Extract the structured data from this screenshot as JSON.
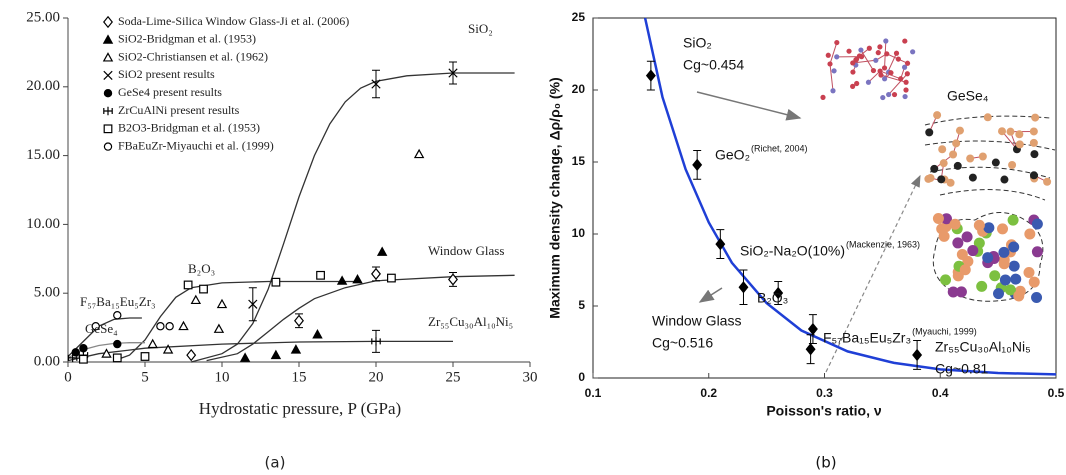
{
  "chart_data": [
    {
      "type": "scatter",
      "caption": "(a)",
      "x_label": "Hydrostatic pressure, P (GPa)",
      "xlim": [
        0,
        30
      ],
      "xticks": [
        0,
        5,
        10,
        15,
        20,
        25,
        30
      ],
      "ylim": [
        0,
        25
      ],
      "yticks": [
        {
          "value": 0,
          "label": "0.00"
        },
        {
          "value": 5,
          "label": "5.00"
        },
        {
          "value": 10,
          "label": "10.00"
        },
        {
          "value": 15,
          "label": "15.00"
        },
        {
          "value": 20,
          "label": "20.00"
        },
        {
          "value": 25,
          "label": "25.00"
        }
      ],
      "series": [
        {
          "name": "Soda-Lime-Silica Window Glass-Ji et al. (2006)",
          "marker": "diamond-open",
          "color": "#000000",
          "x": [
            8,
            15,
            20,
            25
          ],
          "values": [
            0.5,
            3.0,
            6.4,
            6.0
          ],
          "errors": [
            null,
            0.5,
            0.5,
            0.5
          ]
        },
        {
          "name": "SiO2-Bridgman et al. (1953)",
          "marker": "triangle-filled",
          "color": "#000000",
          "x": [
            11.5,
            13.5,
            14.8,
            16.2,
            17.8,
            18.8,
            20.4
          ],
          "values": [
            0.3,
            0.5,
            0.9,
            2.0,
            5.9,
            6.0,
            8.0
          ]
        },
        {
          "name": "SiO2-Christiansen et al. (1962)",
          "marker": "triangle-open",
          "color": "#000000",
          "x": [
            2.5,
            5.5,
            6.5,
            7.5,
            8.3,
            9.8,
            10.0,
            22.8
          ],
          "values": [
            0.6,
            1.3,
            0.9,
            2.6,
            4.5,
            2.4,
            4.2,
            15.1
          ]
        },
        {
          "name": "SiO2 present results",
          "marker": "x",
          "color": "#000000",
          "x": [
            12,
            20,
            25
          ],
          "values": [
            4.2,
            20.2,
            21.0
          ],
          "errors": [
            1.2,
            1.0,
            0.8
          ]
        },
        {
          "name": "GeSe4 present results",
          "marker": "circle-filled",
          "color": "#000000",
          "x": [
            0.5,
            1.0,
            3.2
          ],
          "values": [
            0.7,
            1.0,
            1.3
          ]
        },
        {
          "name": "ZrCuAlNi present results",
          "marker": "plus-box",
          "color": "#000000",
          "x": [
            0.3,
            1.0,
            20
          ],
          "values": [
            0.3,
            0.5,
            1.5
          ],
          "errors": [
            null,
            null,
            0.8
          ]
        },
        {
          "name": "B2O3-Bridgman et al. (1953)",
          "marker": "square-open",
          "color": "#000000",
          "x": [
            1.0,
            3.2,
            5.0,
            7.8,
            8.8,
            13.5,
            16.4,
            21.0
          ],
          "values": [
            0.2,
            0.3,
            0.4,
            5.6,
            5.3,
            5.8,
            6.3,
            6.1
          ]
        },
        {
          "name": "FBaEuZr-Miyauchi et al. (1999)",
          "marker": "circle-open",
          "color": "#000000",
          "x": [
            1.8,
            3.2,
            6.0,
            6.6
          ],
          "values": [
            2.6,
            3.4,
            2.6,
            2.6
          ]
        }
      ],
      "curves": [
        {
          "name": "SiO₂",
          "color": "#333333",
          "x": [
            8,
            10,
            11,
            12,
            13,
            14,
            15,
            16,
            17,
            18,
            19,
            20,
            22,
            25,
            29
          ],
          "values": [
            0,
            0.6,
            1.3,
            2.8,
            5.3,
            8.6,
            12,
            15,
            17.3,
            18.9,
            19.9,
            20.4,
            20.8,
            21,
            21
          ]
        },
        {
          "name": "B₂O₃",
          "color": "#333333",
          "x": [
            3,
            4,
            5,
            6,
            7,
            8,
            10,
            13,
            16,
            19
          ],
          "values": [
            0.1,
            0.5,
            1.6,
            3.3,
            4.7,
            5.4,
            5.75,
            5.85,
            5.85,
            5.85
          ]
        },
        {
          "name": "Window Glass",
          "color": "#333333",
          "x": [
            9,
            11,
            12,
            13,
            14,
            15,
            16,
            18,
            20,
            25,
            29
          ],
          "values": [
            0.1,
            0.6,
            1.3,
            2.2,
            3.1,
            3.9,
            4.6,
            5.4,
            5.9,
            6.2,
            6.3
          ]
        },
        {
          "name": "Zr₅₅Cu₃₀Al₁₀Ni₅",
          "color": "#333333",
          "x": [
            0,
            2,
            5,
            10,
            15,
            20,
            25
          ],
          "values": [
            0.1,
            0.6,
            1.0,
            1.3,
            1.45,
            1.5,
            1.5
          ]
        },
        {
          "name": "F₅₇Ba₁₅Eu₅Zr₃",
          "color": "#333333",
          "x": [
            0,
            1,
            2,
            3,
            4,
            4.8
          ],
          "values": [
            0.4,
            1.5,
            2.6,
            3.1,
            3.2,
            3.2
          ]
        },
        {
          "name": "GeSe₄",
          "color": "#888888",
          "x": [
            0,
            1,
            2,
            3,
            4,
            5
          ],
          "values": [
            0.3,
            0.9,
            1.2,
            1.35,
            1.4,
            1.4
          ]
        }
      ]
    },
    {
      "type": "scatter",
      "caption": "(b)",
      "x_label": "Poisson's ratio, ν",
      "y_label": "Maximum density change, Δρ/ρ₀ (%)",
      "xlim": [
        0.1,
        0.5
      ],
      "xticks": [
        0.1,
        0.2,
        0.3,
        0.4,
        0.5
      ],
      "ylim": [
        0,
        25
      ],
      "yticks": [
        0,
        5,
        10,
        15,
        20,
        25
      ],
      "series": [
        {
          "color": "#000000",
          "x": [
            0.15,
            0.19,
            0.21,
            0.23,
            0.26,
            0.29,
            0.288,
            0.38
          ],
          "values": [
            21,
            14.8,
            9.3,
            6.3,
            5.9,
            3.4,
            2.0,
            1.6
          ],
          "errors": [
            1.0,
            1.0,
            1.0,
            1.2,
            0.8,
            1.0,
            1.0,
            1.0
          ]
        }
      ],
      "fit": {
        "color": "#1f3fd6",
        "x": [
          0.145,
          0.16,
          0.18,
          0.2,
          0.22,
          0.25,
          0.28,
          0.32,
          0.36,
          0.4,
          0.45,
          0.5
        ],
        "values": [
          25,
          19.5,
          14.5,
          10.8,
          8.0,
          5.2,
          3.3,
          1.85,
          1.05,
          0.6,
          0.35,
          0.25
        ]
      },
      "annotations": [
        {
          "text": "SiO₂",
          "line2": "Cg~0.454"
        },
        {
          "text": "GeO₂",
          "note": "(Richet, 2004)"
        },
        {
          "text": "SiO₂-Na₂O(10%)",
          "note": "(Mackenzie, 1963)"
        },
        {
          "text": "B₂O₃"
        },
        {
          "text": "F₅₇Ba₁₅Eu₅Zr₃",
          "note": "(Myauchi, 1999)"
        },
        {
          "text": "Window Glass",
          "line2": "Cg~0.516"
        },
        {
          "text": "Zr₅₅Cu₃₀Al₁₀Ni₅",
          "line2": "Cg~0.81"
        },
        {
          "text": "GeSe₄"
        }
      ]
    }
  ]
}
